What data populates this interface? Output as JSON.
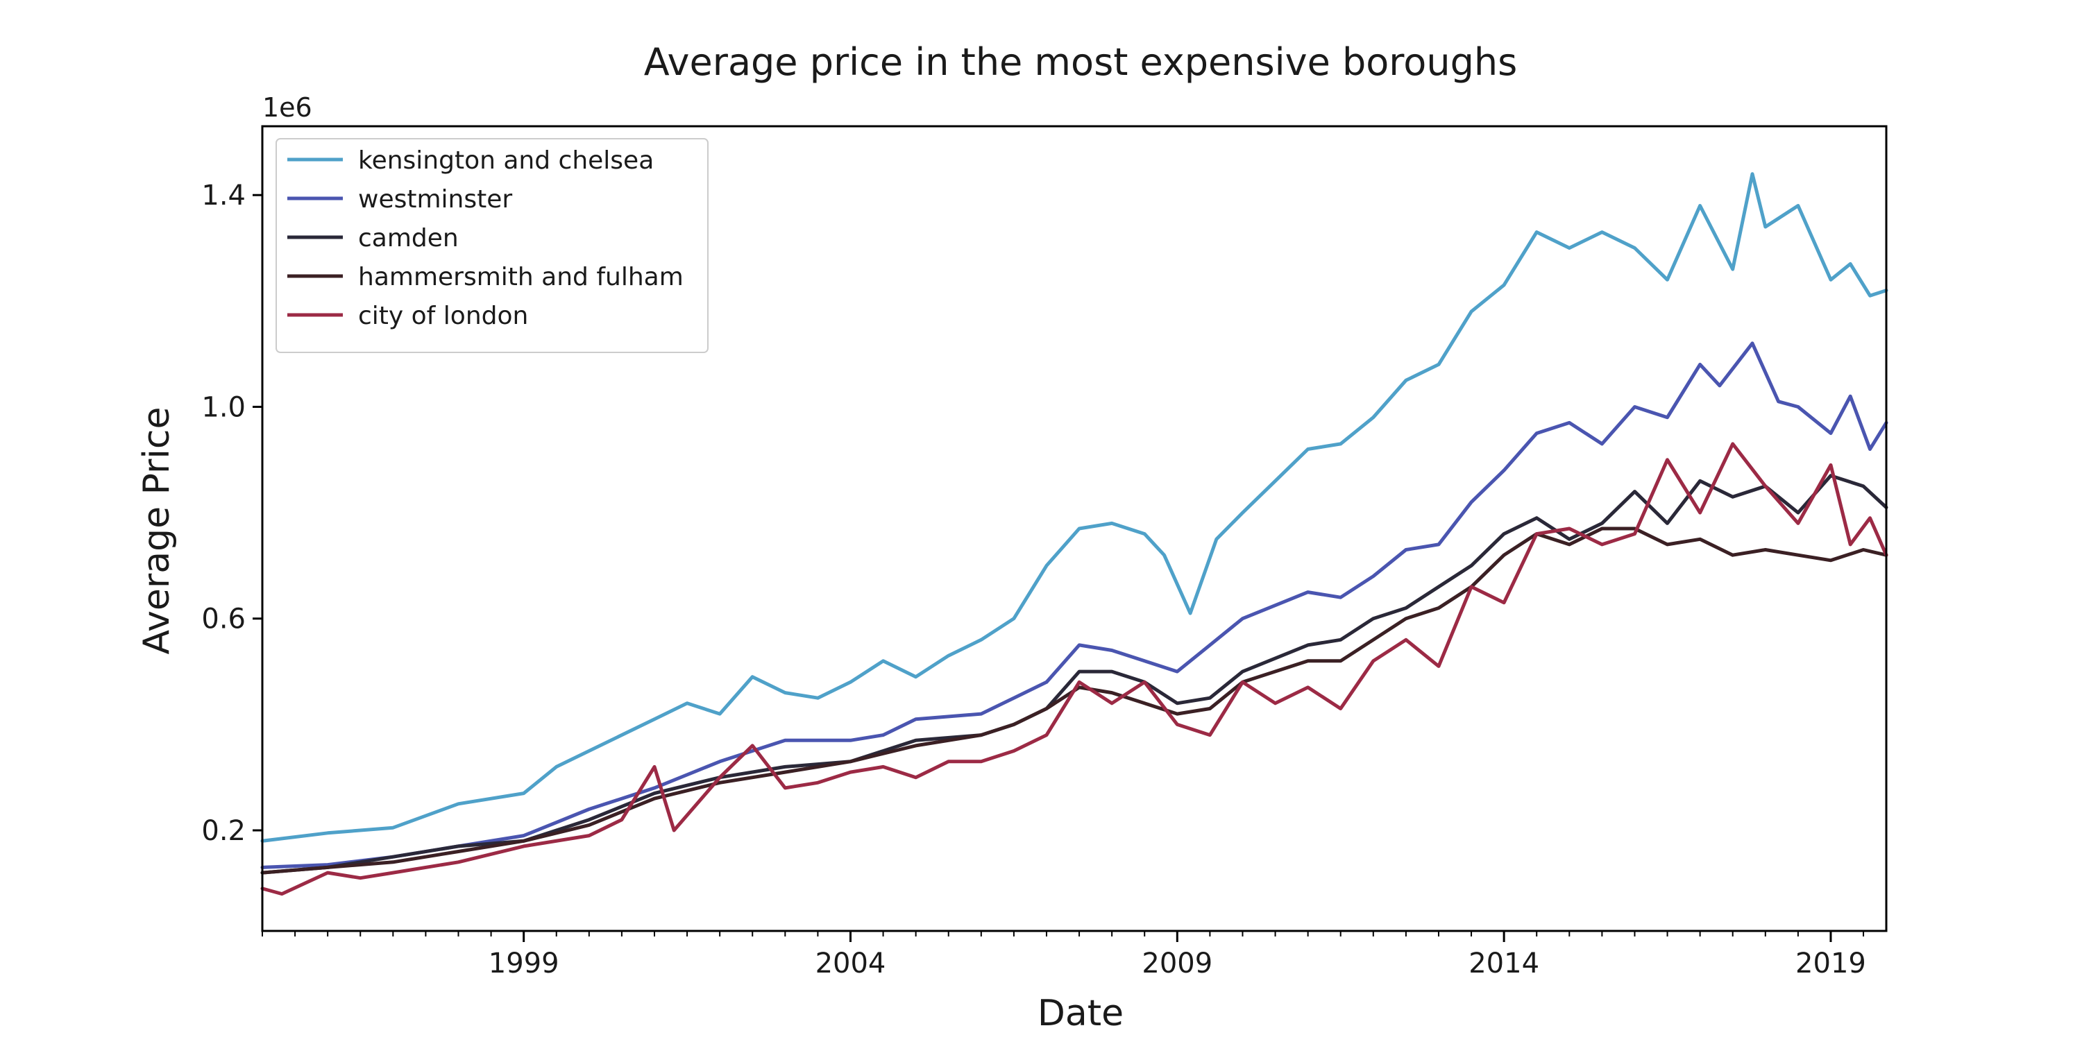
{
  "chart_data": {
    "type": "line",
    "title": "Average price in the most expensive boroughs",
    "xlabel": "Date",
    "ylabel": "Average Price",
    "y_offset_text": "1e6",
    "y_ticks": [
      0.2,
      0.6,
      1.0,
      1.4
    ],
    "y_tick_labels": [
      "0.2",
      "0.6",
      "1.0",
      "1.4"
    ],
    "x_ticks": [
      1999,
      2004,
      2009,
      2014,
      2019
    ],
    "x_tick_labels": [
      "1999",
      "2004",
      "2009",
      "2014",
      "2019"
    ],
    "xlim": [
      1995.0,
      2019.85
    ],
    "ylim": [
      0.01,
      1.53
    ],
    "grid": false,
    "legend_position": "top-left",
    "series": [
      {
        "name": "kensington and chelsea",
        "color": "#4fa1c9",
        "points": [
          [
            1995.0,
            0.18
          ],
          [
            1996.0,
            0.195
          ],
          [
            1997.0,
            0.205
          ],
          [
            1998.0,
            0.25
          ],
          [
            1999.0,
            0.27
          ],
          [
            1999.5,
            0.32
          ],
          [
            2000.0,
            0.35
          ],
          [
            2001.0,
            0.41
          ],
          [
            2001.5,
            0.44
          ],
          [
            2002.0,
            0.42
          ],
          [
            2002.5,
            0.49
          ],
          [
            2003.0,
            0.46
          ],
          [
            2003.5,
            0.45
          ],
          [
            2004.0,
            0.48
          ],
          [
            2004.5,
            0.52
          ],
          [
            2005.0,
            0.49
          ],
          [
            2005.5,
            0.53
          ],
          [
            2006.0,
            0.56
          ],
          [
            2006.5,
            0.6
          ],
          [
            2007.0,
            0.7
          ],
          [
            2007.5,
            0.77
          ],
          [
            2008.0,
            0.78
          ],
          [
            2008.5,
            0.76
          ],
          [
            2008.8,
            0.72
          ],
          [
            2009.2,
            0.61
          ],
          [
            2009.6,
            0.75
          ],
          [
            2010.0,
            0.8
          ],
          [
            2010.5,
            0.86
          ],
          [
            2011.0,
            0.92
          ],
          [
            2011.5,
            0.93
          ],
          [
            2012.0,
            0.98
          ],
          [
            2012.5,
            1.05
          ],
          [
            2013.0,
            1.08
          ],
          [
            2013.5,
            1.18
          ],
          [
            2014.0,
            1.23
          ],
          [
            2014.5,
            1.33
          ],
          [
            2015.0,
            1.3
          ],
          [
            2015.5,
            1.33
          ],
          [
            2016.0,
            1.3
          ],
          [
            2016.5,
            1.24
          ],
          [
            2017.0,
            1.38
          ],
          [
            2017.5,
            1.26
          ],
          [
            2017.8,
            1.44
          ],
          [
            2018.0,
            1.34
          ],
          [
            2018.5,
            1.38
          ],
          [
            2019.0,
            1.24
          ],
          [
            2019.3,
            1.27
          ],
          [
            2019.6,
            1.21
          ],
          [
            2019.85,
            1.22
          ]
        ]
      },
      {
        "name": "westminster",
        "color": "#4a55b0",
        "points": [
          [
            1995.0,
            0.13
          ],
          [
            1996.0,
            0.135
          ],
          [
            1997.0,
            0.15
          ],
          [
            1998.0,
            0.17
          ],
          [
            1999.0,
            0.19
          ],
          [
            2000.0,
            0.24
          ],
          [
            2001.0,
            0.28
          ],
          [
            2002.0,
            0.33
          ],
          [
            2003.0,
            0.37
          ],
          [
            2004.0,
            0.37
          ],
          [
            2004.5,
            0.38
          ],
          [
            2005.0,
            0.41
          ],
          [
            2006.0,
            0.42
          ],
          [
            2006.5,
            0.45
          ],
          [
            2007.0,
            0.48
          ],
          [
            2007.5,
            0.55
          ],
          [
            2008.0,
            0.54
          ],
          [
            2008.5,
            0.52
          ],
          [
            2009.0,
            0.5
          ],
          [
            2009.5,
            0.55
          ],
          [
            2010.0,
            0.6
          ],
          [
            2011.0,
            0.65
          ],
          [
            2011.5,
            0.64
          ],
          [
            2012.0,
            0.68
          ],
          [
            2012.5,
            0.73
          ],
          [
            2013.0,
            0.74
          ],
          [
            2013.5,
            0.82
          ],
          [
            2014.0,
            0.88
          ],
          [
            2014.5,
            0.95
          ],
          [
            2015.0,
            0.97
          ],
          [
            2015.5,
            0.93
          ],
          [
            2016.0,
            1.0
          ],
          [
            2016.5,
            0.98
          ],
          [
            2017.0,
            1.08
          ],
          [
            2017.3,
            1.04
          ],
          [
            2017.8,
            1.12
          ],
          [
            2018.2,
            1.01
          ],
          [
            2018.5,
            1.0
          ],
          [
            2019.0,
            0.95
          ],
          [
            2019.3,
            1.02
          ],
          [
            2019.6,
            0.92
          ],
          [
            2019.85,
            0.97
          ]
        ]
      },
      {
        "name": "camden",
        "color": "#2a2838",
        "points": [
          [
            1995.0,
            0.12
          ],
          [
            1996.0,
            0.13
          ],
          [
            1997.0,
            0.15
          ],
          [
            1998.0,
            0.17
          ],
          [
            1999.0,
            0.18
          ],
          [
            2000.0,
            0.22
          ],
          [
            2001.0,
            0.27
          ],
          [
            2002.0,
            0.3
          ],
          [
            2003.0,
            0.32
          ],
          [
            2004.0,
            0.33
          ],
          [
            2005.0,
            0.37
          ],
          [
            2006.0,
            0.38
          ],
          [
            2006.5,
            0.4
          ],
          [
            2007.0,
            0.43
          ],
          [
            2007.5,
            0.5
          ],
          [
            2008.0,
            0.5
          ],
          [
            2008.5,
            0.48
          ],
          [
            2009.0,
            0.44
          ],
          [
            2009.5,
            0.45
          ],
          [
            2010.0,
            0.5
          ],
          [
            2011.0,
            0.55
          ],
          [
            2011.5,
            0.56
          ],
          [
            2012.0,
            0.6
          ],
          [
            2012.5,
            0.62
          ],
          [
            2013.0,
            0.66
          ],
          [
            2013.5,
            0.7
          ],
          [
            2014.0,
            0.76
          ],
          [
            2014.5,
            0.79
          ],
          [
            2015.0,
            0.75
          ],
          [
            2015.5,
            0.78
          ],
          [
            2016.0,
            0.84
          ],
          [
            2016.5,
            0.78
          ],
          [
            2017.0,
            0.86
          ],
          [
            2017.5,
            0.83
          ],
          [
            2018.0,
            0.85
          ],
          [
            2018.5,
            0.8
          ],
          [
            2019.0,
            0.87
          ],
          [
            2019.5,
            0.85
          ],
          [
            2019.85,
            0.81
          ]
        ]
      },
      {
        "name": "hammersmith and fulham",
        "color": "#3b2024",
        "points": [
          [
            1995.0,
            0.12
          ],
          [
            1996.0,
            0.13
          ],
          [
            1997.0,
            0.14
          ],
          [
            1998.0,
            0.16
          ],
          [
            1999.0,
            0.18
          ],
          [
            2000.0,
            0.21
          ],
          [
            2001.0,
            0.26
          ],
          [
            2002.0,
            0.29
          ],
          [
            2003.0,
            0.31
          ],
          [
            2004.0,
            0.33
          ],
          [
            2005.0,
            0.36
          ],
          [
            2006.0,
            0.38
          ],
          [
            2006.5,
            0.4
          ],
          [
            2007.0,
            0.43
          ],
          [
            2007.5,
            0.47
          ],
          [
            2008.0,
            0.46
          ],
          [
            2008.5,
            0.44
          ],
          [
            2009.0,
            0.42
          ],
          [
            2009.5,
            0.43
          ],
          [
            2010.0,
            0.48
          ],
          [
            2011.0,
            0.52
          ],
          [
            2011.5,
            0.52
          ],
          [
            2012.0,
            0.56
          ],
          [
            2012.5,
            0.6
          ],
          [
            2013.0,
            0.62
          ],
          [
            2013.5,
            0.66
          ],
          [
            2014.0,
            0.72
          ],
          [
            2014.5,
            0.76
          ],
          [
            2015.0,
            0.74
          ],
          [
            2015.5,
            0.77
          ],
          [
            2016.0,
            0.77
          ],
          [
            2016.5,
            0.74
          ],
          [
            2017.0,
            0.75
          ],
          [
            2017.5,
            0.72
          ],
          [
            2018.0,
            0.73
          ],
          [
            2018.5,
            0.72
          ],
          [
            2019.0,
            0.71
          ],
          [
            2019.5,
            0.73
          ],
          [
            2019.85,
            0.72
          ]
        ]
      },
      {
        "name": "city of london",
        "color": "#9c2a45",
        "points": [
          [
            1995.0,
            0.09
          ],
          [
            1995.3,
            0.08
          ],
          [
            1996.0,
            0.12
          ],
          [
            1996.5,
            0.11
          ],
          [
            1997.0,
            0.12
          ],
          [
            1998.0,
            0.14
          ],
          [
            1999.0,
            0.17
          ],
          [
            2000.0,
            0.19
          ],
          [
            2000.5,
            0.22
          ],
          [
            2001.0,
            0.32
          ],
          [
            2001.3,
            0.2
          ],
          [
            2002.0,
            0.3
          ],
          [
            2002.5,
            0.36
          ],
          [
            2003.0,
            0.28
          ],
          [
            2003.5,
            0.29
          ],
          [
            2004.0,
            0.31
          ],
          [
            2004.5,
            0.32
          ],
          [
            2005.0,
            0.3
          ],
          [
            2005.5,
            0.33
          ],
          [
            2006.0,
            0.33
          ],
          [
            2006.5,
            0.35
          ],
          [
            2007.0,
            0.38
          ],
          [
            2007.5,
            0.48
          ],
          [
            2008.0,
            0.44
          ],
          [
            2008.5,
            0.48
          ],
          [
            2009.0,
            0.4
          ],
          [
            2009.5,
            0.38
          ],
          [
            2010.0,
            0.48
          ],
          [
            2010.5,
            0.44
          ],
          [
            2011.0,
            0.47
          ],
          [
            2011.5,
            0.43
          ],
          [
            2012.0,
            0.52
          ],
          [
            2012.5,
            0.56
          ],
          [
            2013.0,
            0.51
          ],
          [
            2013.5,
            0.66
          ],
          [
            2014.0,
            0.63
          ],
          [
            2014.5,
            0.76
          ],
          [
            2015.0,
            0.77
          ],
          [
            2015.5,
            0.74
          ],
          [
            2016.0,
            0.76
          ],
          [
            2016.5,
            0.9
          ],
          [
            2017.0,
            0.8
          ],
          [
            2017.5,
            0.93
          ],
          [
            2018.0,
            0.85
          ],
          [
            2018.5,
            0.78
          ],
          [
            2019.0,
            0.89
          ],
          [
            2019.3,
            0.74
          ],
          [
            2019.6,
            0.79
          ],
          [
            2019.85,
            0.72
          ]
        ]
      }
    ]
  }
}
